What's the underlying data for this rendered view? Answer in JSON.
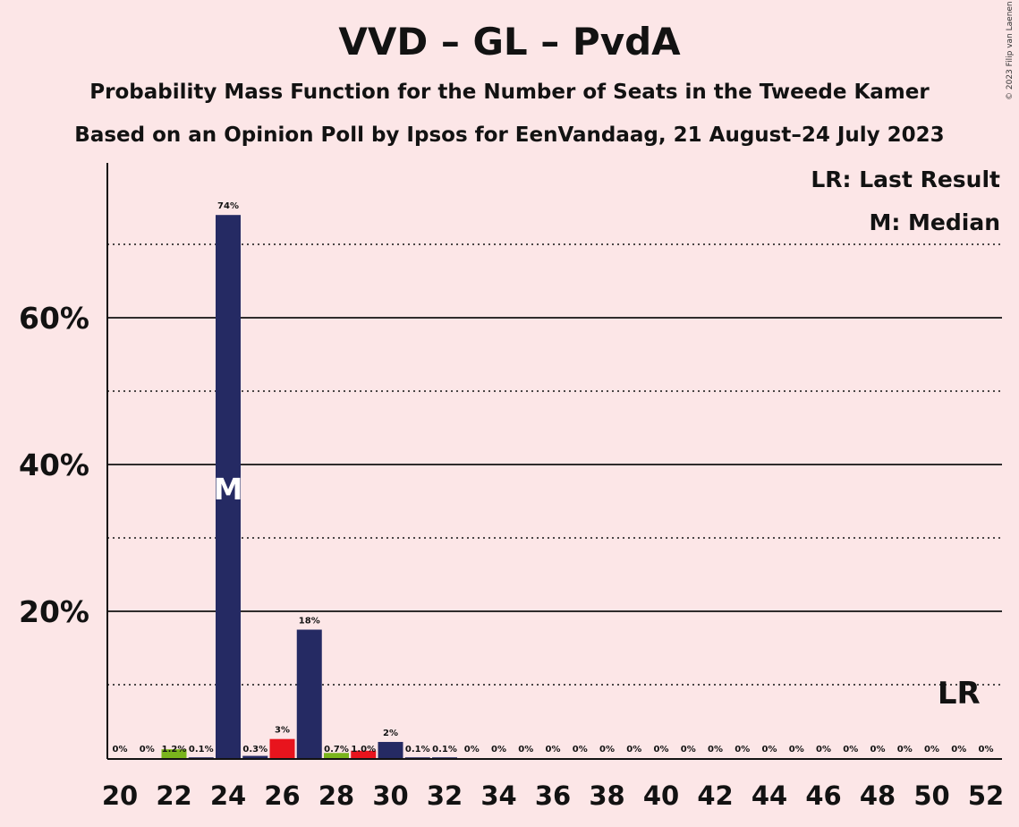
{
  "title": "VVD – GL – PvdA",
  "subtitle1": "Probability Mass Function for the Number of Seats in the Tweede Kamer",
  "subtitle2": "Based on an Opinion Poll by Ipsos for EenVandaag, 21 August–24 July 2023",
  "copyright": "© 2023 Filip van Laenen",
  "legend": {
    "last_result": "LR: Last Result",
    "median": "M: Median"
  },
  "colors": {
    "background": "#fce6e7",
    "vvd_navy": "#252a63",
    "gl_green": "#7ab51d",
    "pvda_red": "#e8141d"
  },
  "chart_data": {
    "type": "bar",
    "title": "VVD – GL – PvdA",
    "xlabel": "",
    "ylabel": "",
    "ylim": [
      0,
      80
    ],
    "yticks_solid": [
      20,
      40,
      60
    ],
    "ytick_labels": [
      "20%",
      "40%",
      "60%"
    ],
    "yticks_dotted": [
      10,
      30,
      50,
      70
    ],
    "grid": true,
    "legend_position": "top-right",
    "x_tick_labels": [
      "20",
      "22",
      "24",
      "26",
      "28",
      "30",
      "32",
      "34",
      "36",
      "38",
      "40",
      "42",
      "44",
      "46",
      "48",
      "50",
      "52"
    ],
    "categories": [
      20,
      21,
      22,
      23,
      24,
      25,
      26,
      27,
      28,
      29,
      30,
      31,
      32,
      33,
      34,
      35,
      36,
      37,
      38,
      39,
      40,
      41,
      42,
      43,
      44,
      45,
      46,
      47,
      48,
      49,
      50,
      51,
      52
    ],
    "values": [
      0,
      0,
      1.2,
      0.1,
      74,
      0.3,
      2.6,
      17.5,
      0.7,
      1.0,
      2.2,
      0.1,
      0.1,
      0,
      0,
      0,
      0,
      0,
      0,
      0,
      0,
      0,
      0,
      0,
      0,
      0,
      0,
      0,
      0,
      0,
      0,
      0,
      0
    ],
    "labels": [
      "0%",
      "0%",
      "1.2%",
      "0.1%",
      "74%",
      "0.3%",
      "3%",
      "18%",
      "0.7%",
      "1.0%",
      "2%",
      "0.1%",
      "0.1%",
      "0%",
      "0%",
      "0%",
      "0%",
      "0%",
      "0%",
      "0%",
      "0%",
      "0%",
      "0%",
      "0%",
      "0%",
      "0%",
      "0%",
      "0%",
      "0%",
      "0%",
      "0%",
      "0%",
      "0%"
    ],
    "bar_colors": [
      "navy",
      "navy",
      "green",
      "navy",
      "navy",
      "navy",
      "red",
      "navy",
      "green",
      "red",
      "navy",
      "navy",
      "navy",
      "navy",
      "navy",
      "navy",
      "navy",
      "navy",
      "navy",
      "navy",
      "navy",
      "navy",
      "navy",
      "navy",
      "navy",
      "navy",
      "navy",
      "navy",
      "navy",
      "navy",
      "navy",
      "navy",
      "navy"
    ],
    "median_seat": 24,
    "median_label": "M",
    "last_result_seat": 51,
    "last_result_label": "LR"
  }
}
